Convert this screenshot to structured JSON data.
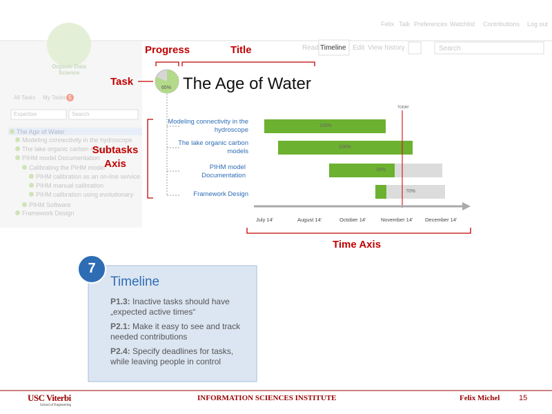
{
  "top_nav": {
    "user": "Felix",
    "links": [
      "Talk",
      "Preferences",
      "Watchlist",
      "Contributions",
      "Log out"
    ]
  },
  "logo": "Organic Data Science",
  "tabs": [
    "Read",
    "Timeline",
    "Edit",
    "View history"
  ],
  "search_placeholder": "Search",
  "sidebar": {
    "filters": [
      "All Tasks",
      "My Tasks"
    ],
    "badge": "5",
    "expertise": "Expertise",
    "search": "Search",
    "tree": [
      "The Age of Water",
      "Modeling connectivity in the hydroscope",
      "The lake organic carbon models",
      "PIHM model Documentation",
      "Calibrating the PIHM model",
      "PIHM calibration as an on-line service",
      "PIHM manual calibration",
      "PIHM calibration using evolutionary",
      "PIHM Software",
      "Framework Design"
    ]
  },
  "annotations": {
    "progress": "Progress",
    "title": "Title",
    "task": "Task",
    "subtasks_axis": "Subtasks Axis",
    "time_axis": "Time Axis"
  },
  "task": {
    "progress": "65%",
    "title": "The Age of Water"
  },
  "timeline": {
    "today": "TODAY",
    "subtasks": [
      {
        "label": "Modeling connectivity in the hydroscope",
        "progress": "100%"
      },
      {
        "label": "The lake organic carbon models",
        "progress": "100%"
      },
      {
        "label": "PIHM model Documentation",
        "progress": "39%"
      },
      {
        "label": "Framework Design",
        "progress": "70%"
      }
    ],
    "axis": [
      "July 14'",
      "August 14'",
      "October 14'",
      "November 14'",
      "December 14'"
    ]
  },
  "callout": {
    "number": "7",
    "title": "Timeline",
    "items": [
      {
        "id": "P1.3:",
        "text": "Inactive tasks should have „expected active times“"
      },
      {
        "id": "P2.1:",
        "text": "Make it easy to see and track needed contributions"
      },
      {
        "id": "P2.4:",
        "text": "Specify deadlines for tasks, while leaving people in control"
      }
    ]
  },
  "footer": {
    "school": "USC Viterbi",
    "school_sub": "School of Engineering",
    "institute": "INFORMATION SCIENCES INSTITUTE",
    "author": "Felix Michel",
    "page": "15"
  }
}
